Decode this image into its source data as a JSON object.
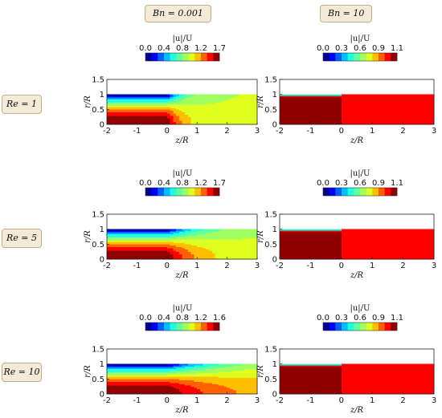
{
  "column_headers": [
    "Bn = 0.001",
    "Bn = 10"
  ],
  "row_labels": [
    "Re = 1",
    "Re = 5",
    "Re = 10"
  ],
  "chart_data": {
    "type": "heatmap",
    "title": "",
    "xlabel": "z/R",
    "ylabel": "r/R",
    "colorbar_label": "|u|/U",
    "xlim": [
      -2,
      3
    ],
    "ylim": [
      0,
      1.5
    ],
    "x_ticks": [
      -2,
      -1,
      0,
      1,
      2,
      3
    ],
    "y_ticks": [
      0,
      0.5,
      1,
      1.5
    ],
    "y_tick_labels": [
      "0",
      "0.5",
      "1",
      "1.5"
    ],
    "colormap": "jet",
    "panels": [
      {
        "row": "Re = 1",
        "column": "Bn = 0.001",
        "cbar_range": [
          0,
          1.7
        ],
        "cbar_ticks": [
          "0.0",
          "0.4",
          "0.8",
          "1.2",
          "1.7"
        ],
        "centerline_max": 1.7,
        "outflow_value": 1.0,
        "decay_length": 0.5
      },
      {
        "row": "Re = 1",
        "column": "Bn = 10",
        "cbar_range": [
          0,
          1.1
        ],
        "cbar_ticks": [
          "0.0",
          "0.3",
          "0.6",
          "0.9",
          "1.1"
        ],
        "plug_value": 1.1,
        "outflow_value": 1.0
      },
      {
        "row": "Re = 5",
        "column": "Bn = 0.001",
        "cbar_range": [
          0,
          1.7
        ],
        "cbar_ticks": [
          "0.0",
          "0.4",
          "0.8",
          "1.2",
          "1.7"
        ],
        "centerline_max": 1.7,
        "outflow_value": 1.0,
        "decay_length": 1.0
      },
      {
        "row": "Re = 5",
        "column": "Bn = 10",
        "cbar_range": [
          0,
          1.1
        ],
        "cbar_ticks": [
          "0.0",
          "0.3",
          "0.6",
          "0.9",
          "1.1"
        ],
        "plug_value": 1.1,
        "outflow_value": 1.0
      },
      {
        "row": "Re = 10",
        "column": "Bn = 0.001",
        "cbar_range": [
          0,
          1.6
        ],
        "cbar_ticks": [
          "0.0",
          "0.4",
          "0.8",
          "1.2",
          "1.6"
        ],
        "centerline_max": 1.6,
        "outflow_value": 1.05,
        "decay_length": 1.8
      },
      {
        "row": "Re = 10",
        "column": "Bn = 10",
        "cbar_range": [
          0,
          1.1
        ],
        "cbar_ticks": [
          "0.0",
          "0.3",
          "0.6",
          "0.9",
          "1.1"
        ],
        "plug_value": 1.1,
        "outflow_value": 1.0
      }
    ]
  }
}
